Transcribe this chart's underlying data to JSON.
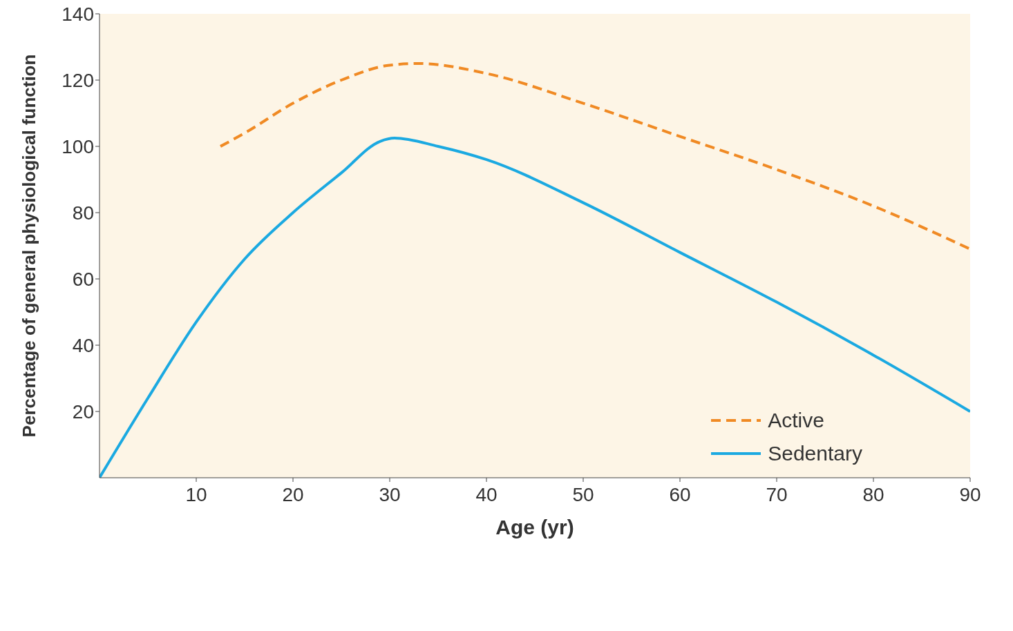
{
  "chart_data": {
    "type": "line",
    "xlabel": "Age (yr)",
    "ylabel": "Percentage of general physiological function",
    "xlim": [
      0,
      90
    ],
    "xticks": [
      10,
      20,
      30,
      40,
      50,
      60,
      70,
      80,
      90
    ],
    "ylim": [
      0,
      140
    ],
    "yticks": [
      20,
      40,
      60,
      80,
      100,
      120,
      140
    ],
    "grid": false,
    "legend": "bottom right",
    "marker": "none",
    "series": [
      {
        "name": "Active",
        "color": "#f08a24",
        "line_style": "dashed",
        "x": [
          12.5,
          15,
          20,
          25,
          30,
          33,
          40,
          50,
          60,
          70,
          80,
          90
        ],
        "values": [
          100,
          104,
          113,
          120,
          124.5,
          125,
          122,
          113,
          103,
          93,
          82,
          69
        ]
      },
      {
        "name": "Sedentary",
        "color": "#1ba9e1",
        "line_style": "solid",
        "x": [
          0,
          5,
          10,
          15,
          20,
          25,
          29,
          30.5,
          35,
          40,
          50,
          60,
          70,
          80,
          90
        ],
        "values": [
          0,
          24,
          47,
          66,
          80,
          92,
          101.5,
          102.5,
          100,
          96,
          83,
          68,
          53,
          37,
          20
        ]
      }
    ]
  }
}
